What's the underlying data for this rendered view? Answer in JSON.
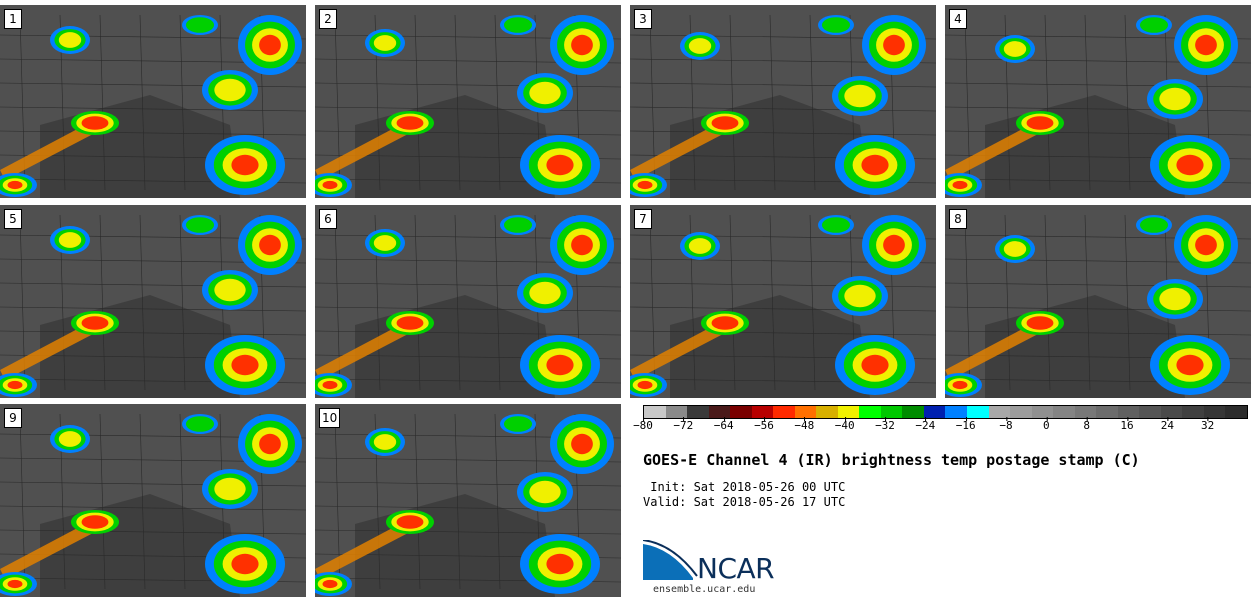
{
  "panels": [
    {
      "label": "1"
    },
    {
      "label": "2"
    },
    {
      "label": "3"
    },
    {
      "label": "4"
    },
    {
      "label": "5"
    },
    {
      "label": "6"
    },
    {
      "label": "7"
    },
    {
      "label": "8"
    },
    {
      "label": "9"
    },
    {
      "label": "10"
    }
  ],
  "colorbar": {
    "colors": [
      "#c8c8c8",
      "#8a8a8a",
      "#3a3a3a",
      "#4a1a1a",
      "#7a0000",
      "#b80000",
      "#ff2a00",
      "#ff7000",
      "#d8b000",
      "#f0f000",
      "#00ff00",
      "#00c800",
      "#008c00",
      "#0020b0",
      "#0080ff",
      "#00ffff",
      "#a8a8a8",
      "#9c9c9c",
      "#909090",
      "#848484",
      "#787878",
      "#6c6c6c",
      "#606060",
      "#555555",
      "#4a4a4a",
      "#404040",
      "#363636",
      "#2c2c2c"
    ],
    "tick_labels": [
      "−80",
      "−72",
      "−64",
      "−56",
      "−48",
      "−40",
      "−32",
      "−24",
      "−16",
      "−8",
      "0",
      "8",
      "16",
      "24",
      "32"
    ],
    "tick_values": [
      -80,
      -72,
      -64,
      -56,
      -48,
      -40,
      -32,
      -24,
      -16,
      -8,
      0,
      8,
      16,
      24,
      32
    ],
    "range": [
      -80,
      40
    ]
  },
  "title": "GOES-E Channel 4 (IR) brightness temp postage stamp (C)",
  "init_line": " Init: Sat 2018-05-26 00 UTC",
  "valid_line": "Valid: Sat 2018-05-26 17 UTC",
  "logo": {
    "text": "NCAR",
    "url": "ensemble.ucar.edu",
    "color": "#0b6fb8"
  }
}
